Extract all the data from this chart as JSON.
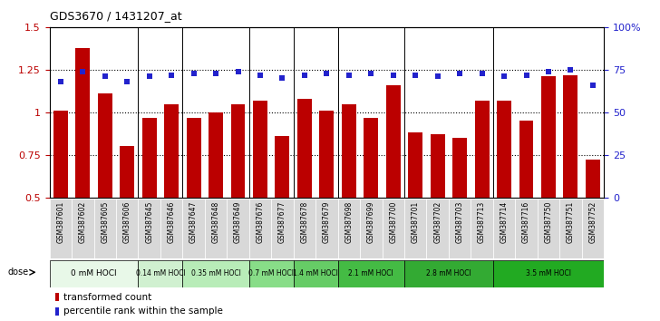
{
  "title": "GDS3670 / 1431207_at",
  "samples": [
    "GSM387601",
    "GSM387602",
    "GSM387605",
    "GSM387606",
    "GSM387645",
    "GSM387646",
    "GSM387647",
    "GSM387648",
    "GSM387649",
    "GSM387676",
    "GSM387677",
    "GSM387678",
    "GSM387679",
    "GSM387698",
    "GSM387699",
    "GSM387700",
    "GSM387701",
    "GSM387702",
    "GSM387703",
    "GSM387713",
    "GSM387714",
    "GSM387716",
    "GSM387750",
    "GSM387751",
    "GSM387752"
  ],
  "bar_values": [
    1.01,
    1.38,
    1.11,
    0.8,
    0.97,
    1.05,
    0.97,
    1.0,
    1.05,
    1.07,
    0.86,
    1.08,
    1.01,
    1.05,
    0.97,
    1.16,
    0.88,
    0.87,
    0.85,
    1.07,
    1.07,
    0.95,
    1.21,
    1.22,
    0.72
  ],
  "dot_values_pct": [
    68,
    74,
    71,
    68,
    71,
    72,
    73,
    73,
    74,
    72,
    70,
    72,
    73,
    72,
    73,
    72,
    72,
    71,
    73,
    73,
    71,
    72,
    74,
    75,
    66
  ],
  "dose_groups": [
    {
      "label": "0 mM HOCl",
      "start": 0,
      "end": 4,
      "bg": "#e8f8e8"
    },
    {
      "label": "0.14 mM HOCl",
      "start": 4,
      "end": 6,
      "bg": "#d0f0d0"
    },
    {
      "label": "0.35 mM HOCl",
      "start": 6,
      "end": 9,
      "bg": "#b8ecb8"
    },
    {
      "label": "0.7 mM HOCl",
      "start": 9,
      "end": 11,
      "bg": "#88dd88"
    },
    {
      "label": "1.4 mM HOCl",
      "start": 11,
      "end": 13,
      "bg": "#66cc66"
    },
    {
      "label": "2.1 mM HOCl",
      "start": 13,
      "end": 16,
      "bg": "#44bb44"
    },
    {
      "label": "2.8 mM HOCl",
      "start": 16,
      "end": 20,
      "bg": "#33aa33"
    },
    {
      "label": "3.5 mM HOCl",
      "start": 20,
      "end": 25,
      "bg": "#22aa22"
    }
  ],
  "bar_color": "#bb0000",
  "dot_color": "#2222cc",
  "ylim_left": [
    0.5,
    1.5
  ],
  "ylim_right": [
    0,
    100
  ],
  "yticks_left": [
    0.5,
    0.75,
    1.0,
    1.25,
    1.5
  ],
  "yticks_right": [
    0,
    25,
    50,
    75,
    100
  ],
  "ytick_labels_left": [
    "0.5",
    "0.75",
    "1",
    "1.25",
    "1.5"
  ],
  "ytick_labels_right": [
    "0",
    "25",
    "50",
    "75",
    "100%"
  ],
  "hlines": [
    0.75,
    1.0,
    1.25
  ],
  "legend_bar": "transformed count",
  "legend_dot": "percentile rank within the sample",
  "xtick_bg": "#d8d8d8",
  "dose_label_text": "dose"
}
